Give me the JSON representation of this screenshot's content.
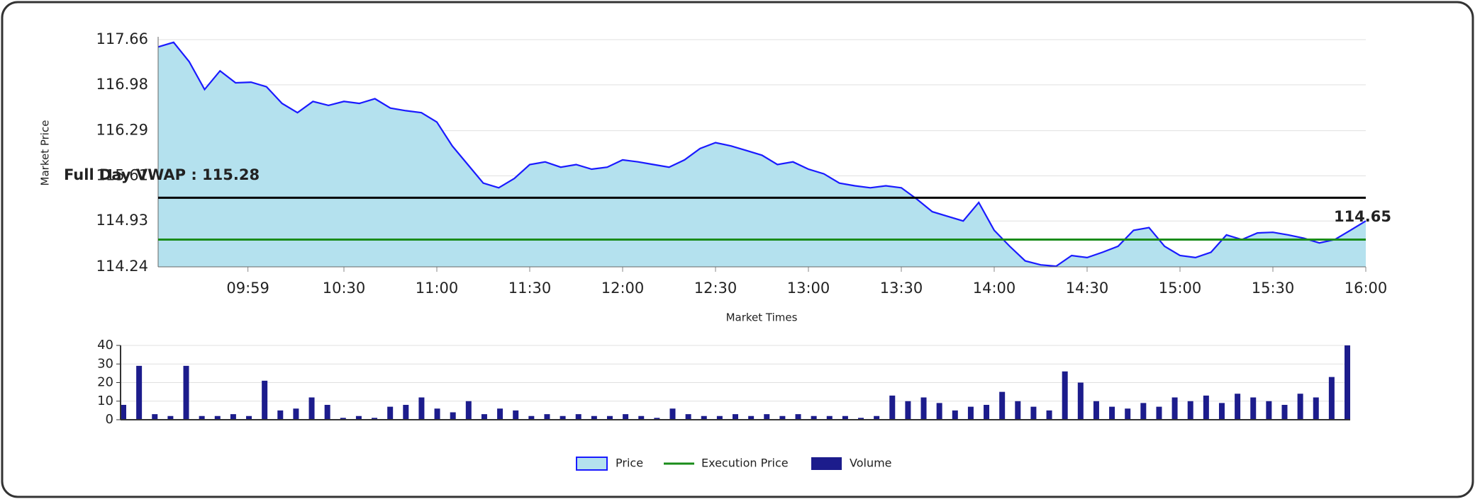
{
  "chart_data": [
    {
      "type": "line",
      "y_label": "Market Price",
      "x_label": "Market Times",
      "x": [
        "09:30",
        "09:35",
        "09:40",
        "09:45",
        "09:50",
        "09:55",
        "10:00",
        "10:05",
        "10:10",
        "10:15",
        "10:20",
        "10:25",
        "10:30",
        "10:35",
        "10:40",
        "10:45",
        "10:50",
        "10:55",
        "11:00",
        "11:05",
        "11:10",
        "11:15",
        "11:20",
        "11:25",
        "11:30",
        "11:35",
        "11:40",
        "11:45",
        "11:50",
        "11:55",
        "12:00",
        "12:05",
        "12:10",
        "12:15",
        "12:20",
        "12:25",
        "12:30",
        "12:35",
        "12:40",
        "12:45",
        "12:50",
        "12:55",
        "13:00",
        "13:05",
        "13:10",
        "13:15",
        "13:20",
        "13:25",
        "13:30",
        "13:35",
        "13:40",
        "13:45",
        "13:50",
        "13:55",
        "14:00",
        "14:05",
        "14:10",
        "14:15",
        "14:20",
        "14:25",
        "14:30",
        "14:35",
        "14:40",
        "14:45",
        "14:50",
        "14:55",
        "15:00",
        "15:05",
        "15:10",
        "15:15",
        "15:20",
        "15:25",
        "15:30",
        "15:35",
        "15:40",
        "15:45",
        "15:50",
        "15:55",
        "16:00"
      ],
      "series": [
        {
          "name": "Price",
          "color": "#1a1aff",
          "fill": "#b4e1ee",
          "values": [
            117.55,
            117.62,
            117.33,
            116.91,
            117.19,
            117.01,
            117.02,
            116.95,
            116.7,
            116.56,
            116.73,
            116.67,
            116.73,
            116.7,
            116.77,
            116.63,
            116.59,
            116.56,
            116.42,
            116.06,
            115.78,
            115.5,
            115.43,
            115.57,
            115.78,
            115.82,
            115.74,
            115.78,
            115.71,
            115.74,
            115.85,
            115.82,
            115.78,
            115.74,
            115.85,
            116.02,
            116.11,
            116.06,
            115.99,
            115.92,
            115.78,
            115.82,
            115.71,
            115.64,
            115.5,
            115.46,
            115.43,
            115.46,
            115.43,
            115.26,
            115.07,
            115.0,
            114.93,
            115.21,
            114.79,
            114.55,
            114.33,
            114.27,
            114.25,
            114.41,
            114.38,
            114.46,
            114.55,
            114.79,
            114.83,
            114.55,
            114.41,
            114.38,
            114.46,
            114.72,
            114.65,
            114.75,
            114.76,
            114.72,
            114.67,
            114.6,
            114.65,
            114.79,
            114.93
          ]
        }
      ],
      "reference_lines": [
        {
          "label": "Full Day VWAP : 115.28",
          "value": 115.28,
          "color": "#000000"
        },
        {
          "name": "Execution Price",
          "value": 114.65,
          "color": "#1a8c1a"
        }
      ],
      "xlim": [
        "09:30",
        "16:00"
      ],
      "xticks": [
        "09:59",
        "10:30",
        "11:00",
        "11:30",
        "12:00",
        "12:30",
        "13:00",
        "13:30",
        "14:00",
        "14:30",
        "15:00",
        "15:30",
        "16:00"
      ],
      "ylim": [
        114.24,
        117.66
      ],
      "yticks": [
        114.24,
        114.93,
        115.61,
        116.29,
        116.98,
        117.66
      ],
      "grid": true
    },
    {
      "type": "bar",
      "x": [
        "09:30",
        "09:35",
        "09:40",
        "09:45",
        "09:50",
        "09:55",
        "10:00",
        "10:05",
        "10:10",
        "10:15",
        "10:20",
        "10:25",
        "10:30",
        "10:35",
        "10:40",
        "10:45",
        "10:50",
        "10:55",
        "11:00",
        "11:05",
        "11:10",
        "11:15",
        "11:20",
        "11:25",
        "11:30",
        "11:35",
        "11:40",
        "11:45",
        "11:50",
        "11:55",
        "12:00",
        "12:05",
        "12:10",
        "12:15",
        "12:20",
        "12:25",
        "12:30",
        "12:35",
        "12:40",
        "12:45",
        "12:50",
        "12:55",
        "13:00",
        "13:05",
        "13:10",
        "13:15",
        "13:20",
        "13:25",
        "13:30",
        "13:35",
        "13:40",
        "13:45",
        "13:50",
        "13:55",
        "14:00",
        "14:05",
        "14:10",
        "14:15",
        "14:20",
        "14:25",
        "14:30",
        "14:35",
        "14:40",
        "14:45",
        "14:50",
        "14:55",
        "15:00",
        "15:05",
        "15:10",
        "15:15",
        "15:20",
        "15:25",
        "15:30",
        "15:35",
        "15:40",
        "15:45",
        "15:50",
        "15:55",
        "16:00"
      ],
      "series": [
        {
          "name": "Volume",
          "color": "#1c1c8c",
          "values": [
            8,
            29,
            3,
            2,
            29,
            2,
            2,
            3,
            2,
            21,
            5,
            6,
            12,
            8,
            1,
            2,
            1,
            7,
            8,
            12,
            6,
            4,
            10,
            3,
            6,
            5,
            2,
            3,
            2,
            3,
            2,
            2,
            3,
            2,
            1,
            6,
            3,
            2,
            2,
            3,
            2,
            3,
            2,
            3,
            2,
            2,
            2,
            1,
            2,
            13,
            10,
            12,
            9,
            5,
            7,
            8,
            15,
            10,
            7,
            5,
            26,
            20,
            10,
            7,
            6,
            9,
            7,
            12,
            10,
            13,
            9,
            14,
            12,
            10,
            8,
            14,
            12,
            23,
            40
          ]
        }
      ],
      "xlim": [
        "09:30",
        "16:00"
      ],
      "ylim": [
        0,
        40
      ],
      "yticks": [
        0,
        10,
        20,
        30,
        40
      ],
      "grid": true
    }
  ]
}
